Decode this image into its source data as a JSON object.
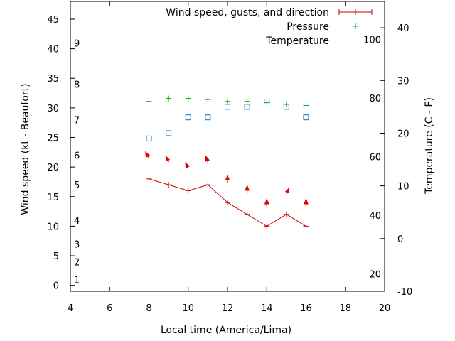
{
  "chart_data": {
    "type": "line",
    "xlabel": "Local time (America/Lima)",
    "ylabel_left": "Wind speed (kt - Beaufort)",
    "ylabel_right": "Temperature (C - F)",
    "xlim": [
      4,
      20
    ],
    "ylim_left": [
      -1,
      48
    ],
    "ylim_right": [
      -10,
      45
    ],
    "x_ticks": [
      4,
      6,
      8,
      10,
      12,
      14,
      16,
      18,
      20
    ],
    "y_left_ticks": [
      0,
      5,
      10,
      15,
      20,
      25,
      30,
      35,
      40,
      45
    ],
    "y_right_ticks_c": [
      -10,
      0,
      10,
      20,
      30,
      40
    ],
    "y_right_ticks_f": [
      20,
      40,
      60,
      80,
      100
    ],
    "beaufort_labels": [
      {
        "label": "1",
        "kt": 1
      },
      {
        "label": "2",
        "kt": 4
      },
      {
        "label": "3",
        "kt": 7
      },
      {
        "label": "4",
        "kt": 11
      },
      {
        "label": "5",
        "kt": 17
      },
      {
        "label": "6",
        "kt": 22
      },
      {
        "label": "7",
        "kt": 28
      },
      {
        "label": "8",
        "kt": 34
      },
      {
        "label": "9",
        "kt": 41
      }
    ],
    "legend_position": "top-right",
    "series": [
      {
        "name": "Wind speed, gusts, and direction",
        "color": "#cc0000",
        "axis": "left",
        "x": [
          8,
          9,
          10,
          11,
          12,
          13,
          14,
          15,
          16
        ],
        "values": [
          18,
          17,
          16,
          17,
          14,
          12,
          10,
          12,
          10
        ]
      },
      {
        "name": "Pressure",
        "color": "#00aa00",
        "axis": "left",
        "x": [
          8,
          9,
          10,
          11,
          12,
          13,
          14,
          15,
          16
        ],
        "values": [
          31.1,
          31.6,
          31.6,
          31.4,
          31.1,
          31.1,
          30.9,
          30.6,
          30.4
        ]
      },
      {
        "name": "Temperature",
        "color": "#0070c0",
        "axis": "right",
        "x": [
          8,
          9,
          10,
          11,
          12,
          13,
          14,
          15,
          16
        ],
        "values": [
          19,
          20,
          23,
          23,
          25,
          25,
          26,
          25,
          23
        ]
      }
    ],
    "wind_arrows": {
      "color": "#dd0000",
      "x": [
        8,
        9,
        10,
        11,
        12,
        13,
        14,
        15,
        16
      ],
      "kt": [
        21.5,
        20.8,
        19.8,
        20.8,
        17.3,
        15.6,
        13.3,
        15.4,
        13.3
      ],
      "dx": [
        -5,
        -4,
        -4,
        -3,
        0,
        0,
        0,
        4,
        0
      ],
      "dy": [
        -9,
        -9,
        -8,
        -9,
        -11,
        -11,
        -11,
        -9,
        -11
      ]
    }
  }
}
